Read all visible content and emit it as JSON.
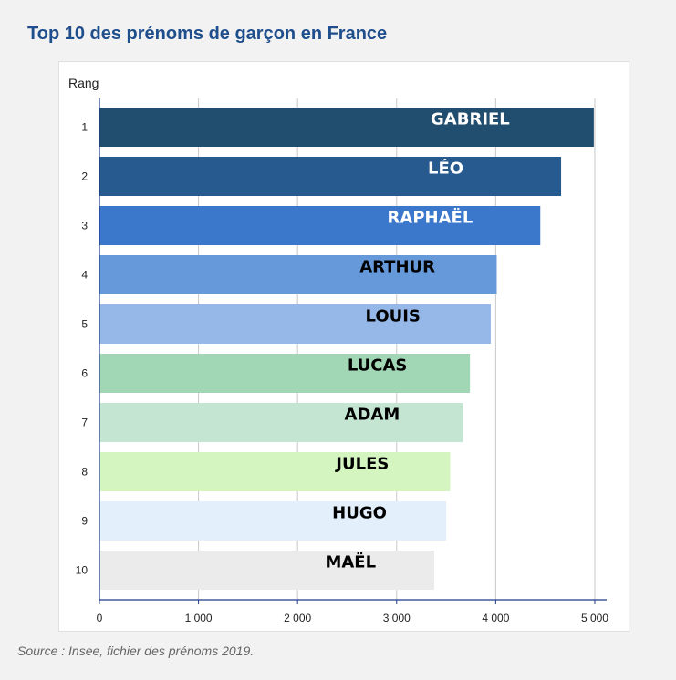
{
  "title": "Top 10 des prénoms de garçon en France",
  "source": "Source : Insee, fichier des prénoms 2019.",
  "chart_data": {
    "type": "bar",
    "orientation": "horizontal",
    "title": "Top 10 des prénoms de garçon en France",
    "ylabel": "Rang",
    "xlabel": "",
    "categories": [
      "1",
      "2",
      "3",
      "4",
      "5",
      "6",
      "7",
      "8",
      "9",
      "10"
    ],
    "names": [
      "GABRIEL",
      "LÉO",
      "RAPHAËL",
      "ARTHUR",
      "LOUIS",
      "LUCAS",
      "ADAM",
      "JULES",
      "HUGO",
      "MAËL"
    ],
    "values": [
      4990,
      4660,
      4450,
      4010,
      3950,
      3740,
      3670,
      3540,
      3500,
      3380
    ],
    "colors": [
      "#214e6e",
      "#275a8f",
      "#3b78cc",
      "#6699d9",
      "#96b8e8",
      "#a2d7b6",
      "#c5e5d3",
      "#d4f5bf",
      "#e3effb",
      "#ebebeb"
    ],
    "label_colors": [
      "#ffffff",
      "#ffffff",
      "#ffffff",
      "#000000",
      "#000000",
      "#000000",
      "#000000",
      "#000000",
      "#000000",
      "#000000"
    ],
    "xticks": [
      "0",
      "1 000",
      "2 000",
      "3 000",
      "4 000",
      "5 000"
    ],
    "xtick_values": [
      0,
      1000,
      2000,
      3000,
      4000,
      5000
    ],
    "xlim": [
      0,
      5120
    ],
    "grid": true
  }
}
